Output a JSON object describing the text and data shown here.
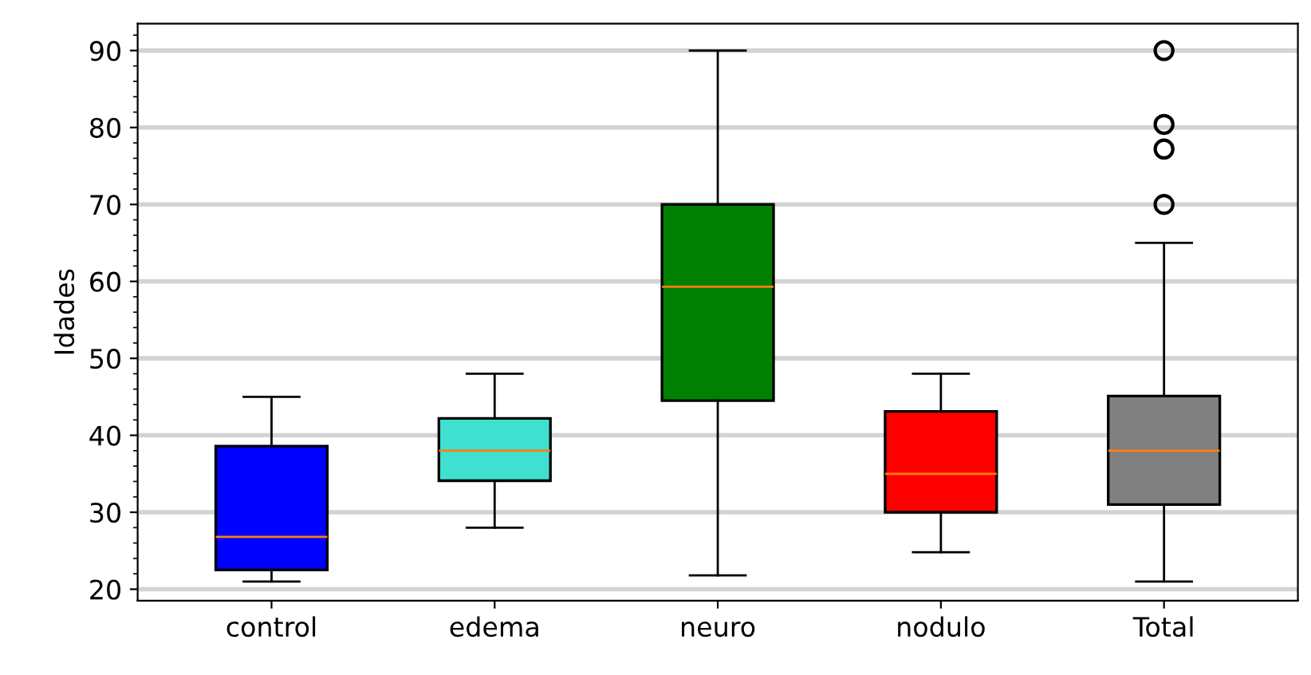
{
  "chart_data": {
    "type": "box",
    "ylabel": "Idades",
    "categories": [
      "control",
      "edema",
      "neuro",
      "nodulo",
      "Total"
    ],
    "colors": [
      "#0000ff",
      "#40e0d0",
      "#008000",
      "#ff0000",
      "#808080"
    ],
    "boxes": [
      {
        "low": 21,
        "q1": 22.5,
        "median": 26.8,
        "q3": 38.6,
        "high": 45
      },
      {
        "low": 28,
        "q1": 34.1,
        "median": 38,
        "q3": 42.2,
        "high": 48
      },
      {
        "low": 21.8,
        "q1": 44.5,
        "median": 59.3,
        "q3": 70,
        "high": 90
      },
      {
        "low": 24.8,
        "q1": 30,
        "median": 35,
        "q3": 43.1,
        "high": 48
      },
      {
        "low": 21,
        "q1": 31,
        "median": 38,
        "q3": 45.1,
        "high": 65,
        "outliers": [
          70,
          77.2,
          80.4,
          90
        ]
      }
    ],
    "ylim": [
      18.5,
      93.5
    ],
    "yticks": [
      20,
      30,
      40,
      50,
      60,
      70,
      80,
      90
    ],
    "grid": "y"
  }
}
